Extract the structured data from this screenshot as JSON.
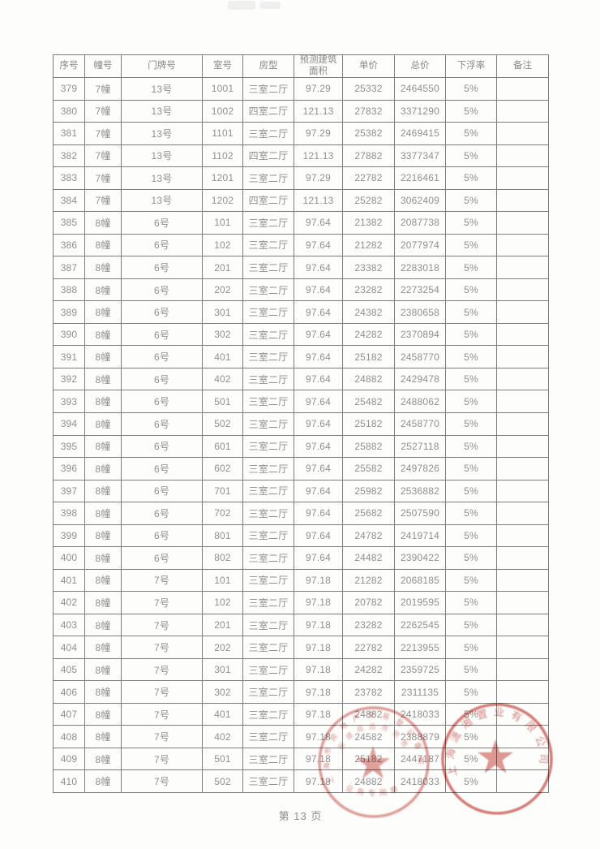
{
  "page": {
    "footer": "第 13 页"
  },
  "table": {
    "columns": [
      "序号",
      "幢号",
      "门牌号",
      "室号",
      "房型",
      "预测建筑面积",
      "单价",
      "总价",
      "下浮率",
      "备注"
    ],
    "rows": [
      [
        "379",
        "7幢",
        "13号",
        "1001",
        "三室二厅",
        "97.29",
        "25332",
        "2464550",
        "5%",
        ""
      ],
      [
        "380",
        "7幢",
        "13号",
        "1002",
        "四室二厅",
        "121.13",
        "27832",
        "3371290",
        "5%",
        ""
      ],
      [
        "381",
        "7幢",
        "13号",
        "1101",
        "三室二厅",
        "97.29",
        "25382",
        "2469415",
        "5%",
        ""
      ],
      [
        "382",
        "7幢",
        "13号",
        "1102",
        "四室二厅",
        "121.13",
        "27882",
        "3377347",
        "5%",
        ""
      ],
      [
        "383",
        "7幢",
        "13号",
        "1201",
        "三室二厅",
        "97.29",
        "22782",
        "2216461",
        "5%",
        ""
      ],
      [
        "384",
        "7幢",
        "13号",
        "1202",
        "四室二厅",
        "121.13",
        "25282",
        "3062409",
        "5%",
        ""
      ],
      [
        "385",
        "8幢",
        "6号",
        "101",
        "三室二厅",
        "97.64",
        "21382",
        "2087738",
        "5%",
        ""
      ],
      [
        "386",
        "8幢",
        "6号",
        "102",
        "三室二厅",
        "97.64",
        "21282",
        "2077974",
        "5%",
        ""
      ],
      [
        "387",
        "8幢",
        "6号",
        "201",
        "三室二厅",
        "97.64",
        "23382",
        "2283018",
        "5%",
        ""
      ],
      [
        "388",
        "8幢",
        "6号",
        "202",
        "三室二厅",
        "97.64",
        "23282",
        "2273254",
        "5%",
        ""
      ],
      [
        "389",
        "8幢",
        "6号",
        "301",
        "三室二厅",
        "97.64",
        "24382",
        "2380658",
        "5%",
        ""
      ],
      [
        "390",
        "8幢",
        "6号",
        "302",
        "三室二厅",
        "97.64",
        "24282",
        "2370894",
        "5%",
        ""
      ],
      [
        "391",
        "8幢",
        "6号",
        "401",
        "三室二厅",
        "97.64",
        "25182",
        "2458770",
        "5%",
        ""
      ],
      [
        "392",
        "8幢",
        "6号",
        "402",
        "三室二厅",
        "97.64",
        "24882",
        "2429478",
        "5%",
        ""
      ],
      [
        "393",
        "8幢",
        "6号",
        "501",
        "三室二厅",
        "97.64",
        "25482",
        "2488062",
        "5%",
        ""
      ],
      [
        "394",
        "8幢",
        "6号",
        "502",
        "三室二厅",
        "97.64",
        "25182",
        "2458770",
        "5%",
        ""
      ],
      [
        "395",
        "8幢",
        "6号",
        "601",
        "三室二厅",
        "97.64",
        "25882",
        "2527118",
        "5%",
        ""
      ],
      [
        "396",
        "8幢",
        "6号",
        "602",
        "三室二厅",
        "97.64",
        "25582",
        "2497826",
        "5%",
        ""
      ],
      [
        "397",
        "8幢",
        "6号",
        "701",
        "三室二厅",
        "97.64",
        "25982",
        "2536882",
        "5%",
        ""
      ],
      [
        "398",
        "8幢",
        "6号",
        "702",
        "三室二厅",
        "97.64",
        "25682",
        "2507590",
        "5%",
        ""
      ],
      [
        "399",
        "8幢",
        "6号",
        "801",
        "三室二厅",
        "97.64",
        "24782",
        "2419714",
        "5%",
        ""
      ],
      [
        "400",
        "8幢",
        "6号",
        "802",
        "三室二厅",
        "97.64",
        "24482",
        "2390422",
        "5%",
        ""
      ],
      [
        "401",
        "8幢",
        "7号",
        "101",
        "三室二厅",
        "97.18",
        "21282",
        "2068185",
        "5%",
        ""
      ],
      [
        "402",
        "8幢",
        "7号",
        "102",
        "三室二厅",
        "97.18",
        "20782",
        "2019595",
        "5%",
        ""
      ],
      [
        "403",
        "8幢",
        "7号",
        "201",
        "三室二厅",
        "97.18",
        "23282",
        "2262545",
        "5%",
        ""
      ],
      [
        "404",
        "8幢",
        "7号",
        "202",
        "三室二厅",
        "97.18",
        "22782",
        "2213955",
        "5%",
        ""
      ],
      [
        "405",
        "8幢",
        "7号",
        "301",
        "三室二厅",
        "97.18",
        "24282",
        "2359725",
        "5%",
        ""
      ],
      [
        "406",
        "8幢",
        "7号",
        "302",
        "三室二厅",
        "97.18",
        "23782",
        "2311135",
        "5%",
        ""
      ],
      [
        "407",
        "8幢",
        "7号",
        "401",
        "三室二厅",
        "97.18",
        "24882",
        "2418033",
        "5%",
        ""
      ],
      [
        "408",
        "8幢",
        "7号",
        "402",
        "三室二厅",
        "97.18",
        "24582",
        "2388879",
        "5%",
        ""
      ],
      [
        "409",
        "8幢",
        "7号",
        "501",
        "三室二厅",
        "97.18",
        "25182",
        "2447187",
        "5%",
        ""
      ],
      [
        "410",
        "8幢",
        "7号",
        "502",
        "三室二厅",
        "97.18",
        "24882",
        "2418033",
        "5%",
        ""
      ]
    ]
  },
  "stamps": {
    "left": {
      "arc_text_outer": "上海市房地产交易登记备案",
      "arc_text_inner": "新建商品房预售",
      "bottom_text": "业务专用章"
    },
    "right": {
      "arc_text": "上海潇湘置业有限公司"
    },
    "color": "#c4453e"
  },
  "colors": {
    "table_border": "#7e7e7e",
    "table_text": "#909090",
    "stamp_red": "#c4453e",
    "paper": "#fdfdfc"
  }
}
